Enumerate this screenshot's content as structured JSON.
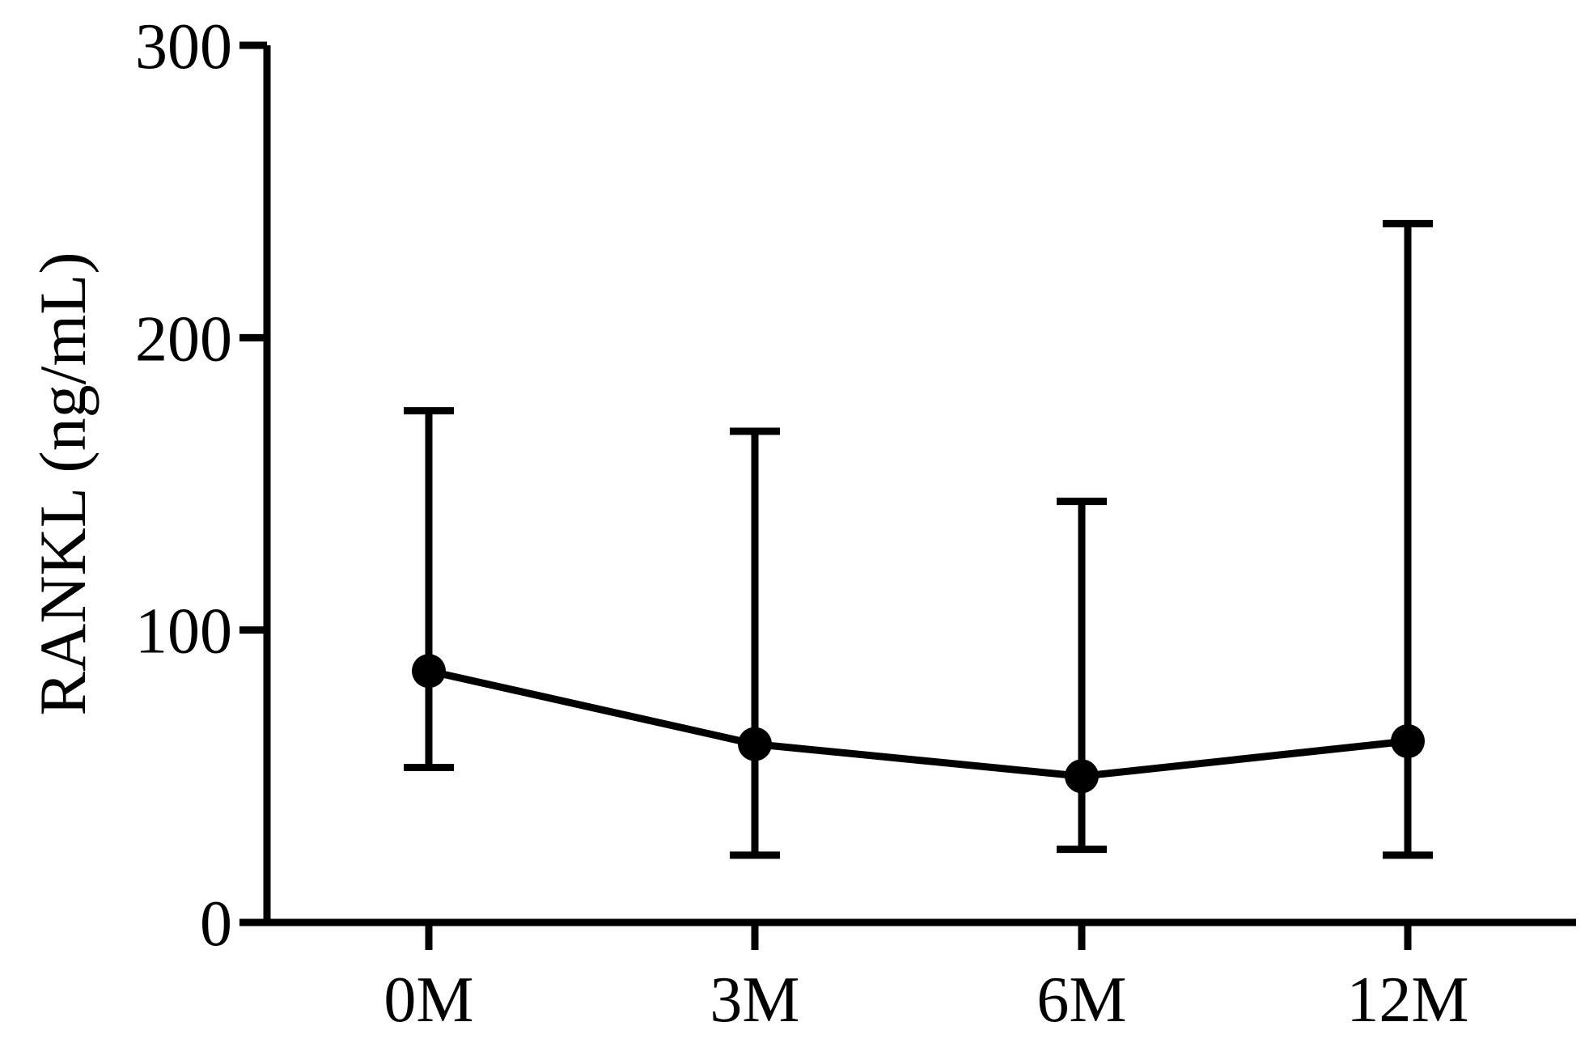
{
  "chart_data": {
    "type": "line",
    "ylabel": "RANKL (ng/mL)",
    "xlabel": "",
    "categories": [
      "0M",
      "3M",
      "6M",
      "12M"
    ],
    "ylim": [
      0,
      300
    ],
    "yticks": [
      0,
      100,
      200,
      300
    ],
    "series": [
      {
        "values": [
          86,
          61,
          50,
          62
        ],
        "error_low": [
          53,
          23,
          25,
          23
        ],
        "error_high": [
          175,
          168,
          144,
          239
        ]
      }
    ],
    "grid": false,
    "legend": "none",
    "color": "#000000"
  }
}
